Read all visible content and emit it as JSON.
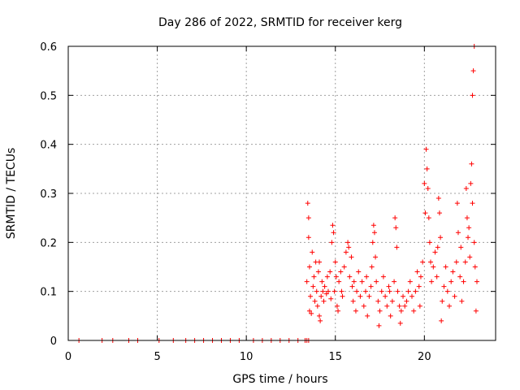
{
  "chart_data": {
    "type": "scatter",
    "title": "Day 286 of 2022, SRMTID for receiver kerg",
    "xlabel": "GPS time / hours",
    "ylabel": "SRMTID / TECUs",
    "xlim": [
      0,
      24
    ],
    "ylim": [
      0,
      0.6
    ],
    "x_ticks": [
      {
        "value": 0,
        "label": "0"
      },
      {
        "value": 5,
        "label": "5"
      },
      {
        "value": 10,
        "label": "10"
      },
      {
        "value": 15,
        "label": "15"
      },
      {
        "value": 20,
        "label": "20"
      }
    ],
    "y_ticks": [
      {
        "value": 0,
        "label": "0"
      },
      {
        "value": 0.1,
        "label": "0.1"
      },
      {
        "value": 0.2,
        "label": "0.2"
      },
      {
        "value": 0.3,
        "label": "0.3"
      },
      {
        "value": 0.4,
        "label": "0.4"
      },
      {
        "value": 0.5,
        "label": "0.5"
      },
      {
        "value": 0.6,
        "label": "0.6"
      }
    ],
    "grid": true,
    "marker": "+",
    "series": [
      {
        "name": "SRMTID",
        "color": "#ff0000",
        "points": [
          [
            0.6,
            0
          ],
          [
            1.9,
            0
          ],
          [
            2.5,
            0
          ],
          [
            3.4,
            0
          ],
          [
            3.9,
            0
          ],
          [
            5.1,
            0
          ],
          [
            5.9,
            0
          ],
          [
            6.6,
            0
          ],
          [
            7.1,
            0
          ],
          [
            7.6,
            0
          ],
          [
            8.1,
            0
          ],
          [
            8.6,
            0
          ],
          [
            9.1,
            0
          ],
          [
            9.6,
            0
          ],
          [
            10.4,
            0
          ],
          [
            10.9,
            0
          ],
          [
            11.4,
            0
          ],
          [
            11.9,
            0
          ],
          [
            12.4,
            0
          ],
          [
            12.9,
            0
          ],
          [
            13.3,
            0
          ],
          [
            13.4,
            0
          ],
          [
            13.5,
            0
          ],
          [
            13.4,
            0.12
          ],
          [
            13.45,
            0.28
          ],
          [
            13.5,
            0.25
          ],
          [
            13.5,
            0.21
          ],
          [
            13.55,
            0.15
          ],
          [
            13.55,
            0.06
          ],
          [
            13.6,
            0.09
          ],
          [
            13.65,
            0.055
          ],
          [
            13.7,
            0.18
          ],
          [
            13.75,
            0.11
          ],
          [
            13.8,
            0.13
          ],
          [
            13.85,
            0.08
          ],
          [
            13.9,
            0.16
          ],
          [
            13.95,
            0.1
          ],
          [
            14.0,
            0.07
          ],
          [
            14.05,
            0.14
          ],
          [
            14.1,
            0.05
          ],
          [
            14.1,
            0.16
          ],
          [
            14.15,
            0.04
          ],
          [
            14.2,
            0.09
          ],
          [
            14.25,
            0.12
          ],
          [
            14.3,
            0.1
          ],
          [
            14.35,
            0.08
          ],
          [
            14.4,
            0.11
          ],
          [
            14.5,
            0.095
          ],
          [
            14.55,
            0.13
          ],
          [
            14.6,
            0.1
          ],
          [
            14.7,
            0.14
          ],
          [
            14.75,
            0.085
          ],
          [
            14.8,
            0.2
          ],
          [
            14.85,
            0.235
          ],
          [
            14.9,
            0.22
          ],
          [
            14.95,
            0.1
          ],
          [
            15.0,
            0.16
          ],
          [
            15.05,
            0.13
          ],
          [
            15.1,
            0.07
          ],
          [
            15.15,
            0.06
          ],
          [
            15.2,
            0.12
          ],
          [
            15.3,
            0.14
          ],
          [
            15.35,
            0.1
          ],
          [
            15.4,
            0.09
          ],
          [
            15.5,
            0.15
          ],
          [
            15.6,
            0.18
          ],
          [
            15.7,
            0.2
          ],
          [
            15.75,
            0.19
          ],
          [
            15.8,
            0.13
          ],
          [
            15.9,
            0.17
          ],
          [
            15.95,
            0.11
          ],
          [
            16.0,
            0.08
          ],
          [
            16.05,
            0.12
          ],
          [
            16.15,
            0.06
          ],
          [
            16.2,
            0.1
          ],
          [
            16.3,
            0.14
          ],
          [
            16.4,
            0.09
          ],
          [
            16.5,
            0.12
          ],
          [
            16.6,
            0.07
          ],
          [
            16.7,
            0.1
          ],
          [
            16.75,
            0.13
          ],
          [
            16.8,
            0.05
          ],
          [
            16.9,
            0.09
          ],
          [
            17.0,
            0.11
          ],
          [
            17.05,
            0.15
          ],
          [
            17.1,
            0.2
          ],
          [
            17.15,
            0.235
          ],
          [
            17.2,
            0.22
          ],
          [
            17.25,
            0.17
          ],
          [
            17.3,
            0.12
          ],
          [
            17.4,
            0.08
          ],
          [
            17.45,
            0.03
          ],
          [
            17.5,
            0.06
          ],
          [
            17.6,
            0.1
          ],
          [
            17.7,
            0.13
          ],
          [
            17.8,
            0.09
          ],
          [
            17.9,
            0.07
          ],
          [
            18.0,
            0.11
          ],
          [
            18.05,
            0.1
          ],
          [
            18.1,
            0.05
          ],
          [
            18.2,
            0.08
          ],
          [
            18.3,
            0.12
          ],
          [
            18.35,
            0.25
          ],
          [
            18.4,
            0.23
          ],
          [
            18.45,
            0.19
          ],
          [
            18.5,
            0.1
          ],
          [
            18.6,
            0.07
          ],
          [
            18.65,
            0.035
          ],
          [
            18.7,
            0.06
          ],
          [
            18.8,
            0.09
          ],
          [
            18.9,
            0.07
          ],
          [
            19.0,
            0.08
          ],
          [
            19.1,
            0.1
          ],
          [
            19.2,
            0.12
          ],
          [
            19.3,
            0.09
          ],
          [
            19.4,
            0.06
          ],
          [
            19.5,
            0.1
          ],
          [
            19.6,
            0.14
          ],
          [
            19.7,
            0.11
          ],
          [
            19.75,
            0.07
          ],
          [
            19.8,
            0.13
          ],
          [
            19.9,
            0.16
          ],
          [
            20.0,
            0.32
          ],
          [
            20.05,
            0.26
          ],
          [
            20.1,
            0.39
          ],
          [
            20.15,
            0.35
          ],
          [
            20.2,
            0.31
          ],
          [
            20.25,
            0.25
          ],
          [
            20.3,
            0.2
          ],
          [
            20.35,
            0.16
          ],
          [
            20.4,
            0.12
          ],
          [
            20.5,
            0.15
          ],
          [
            20.6,
            0.18
          ],
          [
            20.7,
            0.13
          ],
          [
            20.75,
            0.19
          ],
          [
            20.8,
            0.29
          ],
          [
            20.85,
            0.26
          ],
          [
            20.9,
            0.21
          ],
          [
            20.95,
            0.04
          ],
          [
            21.0,
            0.08
          ],
          [
            21.1,
            0.11
          ],
          [
            21.2,
            0.15
          ],
          [
            21.3,
            0.1
          ],
          [
            21.4,
            0.07
          ],
          [
            21.5,
            0.12
          ],
          [
            21.6,
            0.14
          ],
          [
            21.7,
            0.09
          ],
          [
            21.8,
            0.16
          ],
          [
            21.85,
            0.28
          ],
          [
            21.9,
            0.22
          ],
          [
            22.0,
            0.13
          ],
          [
            22.05,
            0.19
          ],
          [
            22.1,
            0.08
          ],
          [
            22.2,
            0.12
          ],
          [
            22.3,
            0.16
          ],
          [
            22.35,
            0.31
          ],
          [
            22.4,
            0.25
          ],
          [
            22.45,
            0.21
          ],
          [
            22.5,
            0.23
          ],
          [
            22.55,
            0.17
          ],
          [
            22.6,
            0.32
          ],
          [
            22.65,
            0.36
          ],
          [
            22.7,
            0.28
          ],
          [
            22.7,
            0.5
          ],
          [
            22.75,
            0.55
          ],
          [
            22.8,
            0.6
          ],
          [
            22.8,
            0.2
          ],
          [
            22.85,
            0.15
          ],
          [
            22.9,
            0.06
          ],
          [
            22.95,
            0.12
          ]
        ]
      }
    ]
  }
}
